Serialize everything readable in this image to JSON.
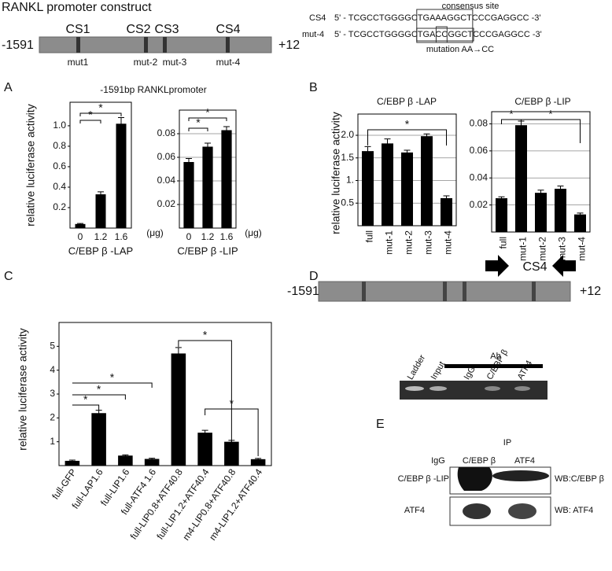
{
  "header": {
    "title": "RANKL promoter construct"
  },
  "construct": {
    "start": "-1591",
    "end": "+12",
    "sites": [
      "CS1",
      "CS2",
      "CS3",
      "CS4"
    ],
    "mutants": [
      "mut1",
      "mut-2",
      "mut-3",
      "mut-4"
    ]
  },
  "sequence": {
    "caption": "consensus site",
    "rows": [
      {
        "name": "CS4",
        "parts": [
          "5' - TCGCCTGGGGC",
          "TGAAAGGCT",
          "CCCGAGGCC -3'"
        ]
      },
      {
        "name": "mut-4",
        "parts": [
          "5' - TCGCCTGGGGC",
          "TGA",
          "CC",
          "GGCT",
          "CCCGAGGCC -3'"
        ]
      }
    ],
    "note": "mutation AA→CC"
  },
  "panel_labels": [
    "A",
    "B",
    "C",
    "D",
    "E"
  ],
  "panel_a_title": "-1591bp RANKLpromoter",
  "chart_data": [
    {
      "type": "bar",
      "y_label": "relative luciferase activity",
      "x_label": "C/EBP β -LAP",
      "x_unit": "(μg)",
      "categories": [
        "0",
        "1.2",
        "1.6"
      ],
      "values": [
        0.04,
        0.33,
        1.02
      ],
      "errors": [
        0.005,
        0.025,
        0.06
      ],
      "color": "#000000",
      "ylim": [
        0,
        1.23
      ],
      "yticks": [
        0.2,
        0.4,
        0.6,
        0.8,
        {
          "value": 1,
          "label": "1.0"
        }
      ],
      "grid": false,
      "annotations": [
        "*",
        "*"
      ]
    },
    {
      "type": "bar",
      "x_label": "C/EBP β -LIP",
      "x_unit": "(μg)",
      "categories": [
        "0",
        "1.2",
        "1.6"
      ],
      "values": [
        0.056,
        0.069,
        0.083
      ],
      "errors": [
        0.003,
        0.003,
        0.003
      ],
      "color": "#000000",
      "ylim": [
        0,
        0.1
      ],
      "yticks": [
        0.02,
        0.04,
        0.06,
        0.08
      ],
      "grid": true,
      "annotations": [
        "*",
        "*"
      ]
    },
    {
      "type": "bar",
      "title": "C/EBP β -LAP",
      "y_label": "relative luciferase activity",
      "categories": [
        "full",
        "mut-1",
        "mut-2",
        "mut-3",
        "mut-4"
      ],
      "values": [
        1.65,
        1.82,
        1.62,
        1.98,
        0.61
      ],
      "errors": [
        0.1,
        0.1,
        0.05,
        0.05,
        0.05
      ],
      "color": "#000000",
      "ylim": [
        0,
        2.47
      ],
      "yticks": [
        0.5,
        {
          "value": 1,
          "label": "1."
        },
        1.5,
        {
          "value": 2,
          "label": "2.0"
        }
      ],
      "grid": true,
      "annotations": [
        "*"
      ]
    },
    {
      "type": "bar",
      "title": "C/EBP β -LIP",
      "categories": [
        "full",
        "mut-1",
        "mut-2",
        "mut-3",
        "mut-4"
      ],
      "values": [
        0.025,
        0.079,
        0.029,
        0.032,
        0.013
      ],
      "errors": [
        0.001,
        0.003,
        0.002,
        0.002,
        0.001
      ],
      "color": "#000000",
      "ylim": [
        0,
        0.089
      ],
      "yticks": [
        0.02,
        0.04,
        0.06,
        0.08
      ],
      "grid": true,
      "annotations": [
        "*",
        "*"
      ]
    },
    {
      "type": "bar",
      "y_label": "relative luciferase activity",
      "categories": [
        "full-GFP",
        "full-LAP1.6",
        "full-LIP1.6",
        "full-ATF4 1.6",
        "full-LIP0.8+ATF40.8",
        "full-LIP1.2+ATF40.4",
        "m4-LIP0.8+ATF40.8",
        "m4-LIP1.2+ATF40.4"
      ],
      "values": [
        0.2,
        2.2,
        0.42,
        0.28,
        4.7,
        1.38,
        1.0,
        0.27
      ],
      "errors": [
        0.03,
        0.12,
        0.03,
        0.03,
        0.25,
        0.1,
        0.06,
        0.03
      ],
      "color": "#000000",
      "ylim": [
        0,
        6
      ],
      "yticks": [
        1,
        2,
        3,
        4,
        5
      ],
      "grid": false,
      "annotations": [
        "*",
        "*",
        "*",
        "*",
        "*"
      ]
    }
  ],
  "panel_d": {
    "start": "-1591",
    "end": "+12",
    "site": "CS4",
    "antibody": "Ab",
    "lanes": [
      "Ladder",
      "Input",
      "IgG",
      "C/EBP β",
      "ATF4"
    ]
  },
  "panel_e": {
    "ip": "IP",
    "lanes": [
      "IgG",
      "C/EBP β",
      "ATF4"
    ],
    "rows": [
      "C/EBP β -LIP",
      "ATF4"
    ],
    "blots": [
      "WB:C/EBP β",
      "WB: ATF4"
    ]
  }
}
